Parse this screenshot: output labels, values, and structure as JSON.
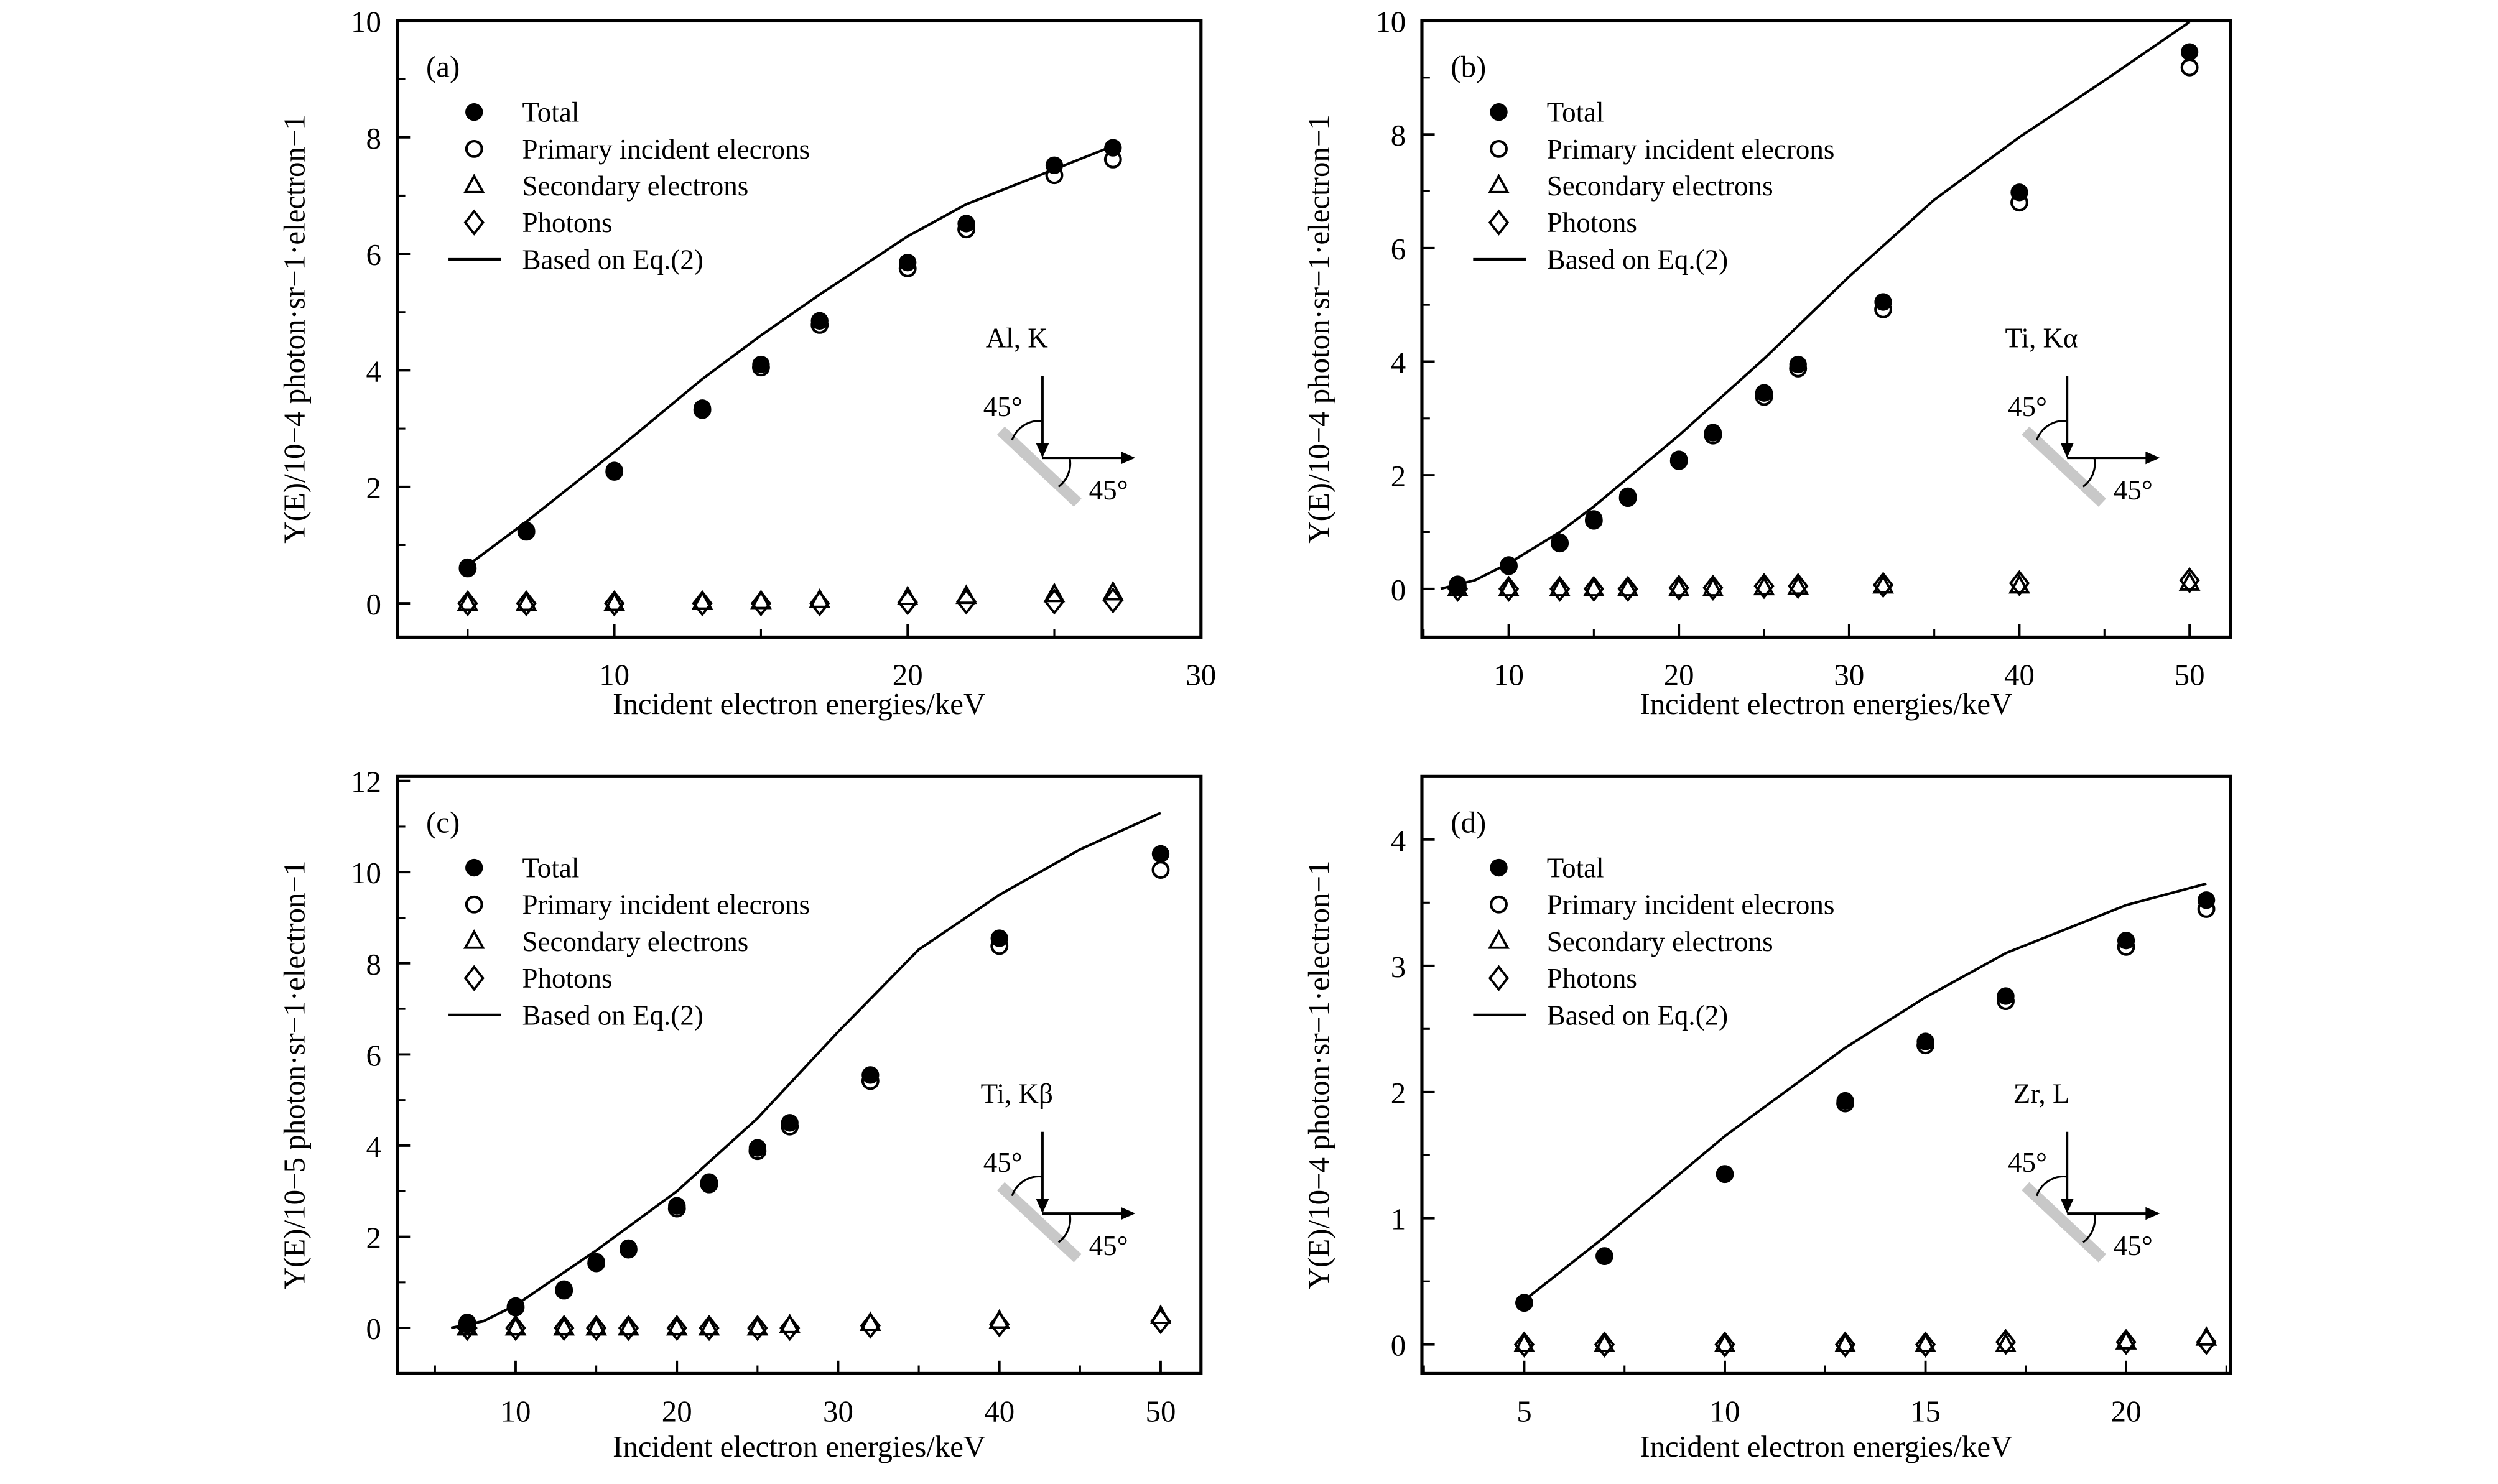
{
  "legend": [
    "Total",
    "Primary incident elecrons",
    "Secondary electrons",
    "Photons",
    "Based on Eq.(2)"
  ],
  "xlabel": "Incident electron energies/keV",
  "angle_label": "45°",
  "chart_data": [
    {
      "type": "scatter",
      "panel": "(a)",
      "annotation": "Al, K",
      "ylabel_exp": "−4",
      "ylabel": "Y(E)/10−4 photon·sr−1·electron−1",
      "xlim": [
        2.6,
        30
      ],
      "ylim": [
        -0.58,
        10
      ],
      "xticks": [
        10,
        20,
        30
      ],
      "xminor": 5,
      "yticks": [
        0,
        2,
        4,
        6,
        8,
        10
      ],
      "yminor": 1,
      "x": [
        5,
        7,
        10,
        13,
        15,
        17,
        20,
        22,
        25,
        27
      ],
      "series": [
        {
          "name": "Total",
          "values": [
            0.62,
            1.25,
            2.28,
            3.35,
            4.1,
            4.85,
            5.85,
            6.52,
            7.52,
            7.82
          ]
        },
        {
          "name": "Primary incident elecrons",
          "values": [
            0.6,
            1.23,
            2.26,
            3.32,
            4.05,
            4.78,
            5.75,
            6.42,
            7.35,
            7.62
          ]
        },
        {
          "name": "Secondary electrons",
          "values": [
            0,
            0,
            0,
            0.02,
            0.03,
            0.05,
            0.1,
            0.12,
            0.15,
            0.18
          ]
        },
        {
          "name": "Photons",
          "values": [
            0,
            0,
            0,
            0,
            0,
            0,
            0.02,
            0.03,
            0.03,
            0.05
          ]
        }
      ],
      "curve": {
        "x": [
          5,
          7,
          10,
          13,
          15,
          17,
          20,
          22,
          25,
          27
        ],
        "y": [
          0.65,
          1.4,
          2.6,
          3.85,
          4.6,
          5.3,
          6.3,
          6.85,
          7.45,
          7.85
        ]
      }
    },
    {
      "type": "scatter",
      "panel": "(b)",
      "annotation": "Ti, Kα",
      "ylabel": "Y(E)/10−4 photon·sr−1·electron−1",
      "xlim": [
        4.9,
        52.4
      ],
      "ylim": [
        -0.85,
        10
      ],
      "xticks": [
        10,
        20,
        30,
        40,
        50
      ],
      "xminor": 5,
      "yticks": [
        0,
        2,
        4,
        6,
        8,
        10
      ],
      "yminor": 1,
      "x": [
        7,
        10,
        13,
        15,
        17,
        20,
        22,
        25,
        27,
        32,
        40,
        50
      ],
      "series": [
        {
          "name": "Total",
          "values": [
            0.08,
            0.42,
            0.82,
            1.23,
            1.63,
            2.28,
            2.75,
            3.45,
            3.95,
            5.05,
            6.98,
            9.45
          ]
        },
        {
          "name": "Primary incident elecrons",
          "values": [
            0.05,
            0.4,
            0.8,
            1.2,
            1.6,
            2.25,
            2.7,
            3.38,
            3.88,
            4.92,
            6.8,
            9.18
          ]
        },
        {
          "name": "Secondary electrons",
          "values": [
            0,
            0,
            0,
            0,
            0,
            0,
            0,
            0.02,
            0.03,
            0.05,
            0.05,
            0.1
          ]
        },
        {
          "name": "Photons",
          "values": [
            0,
            0,
            0,
            0,
            0,
            0.02,
            0.02,
            0.05,
            0.05,
            0.07,
            0.1,
            0.15
          ]
        }
      ],
      "curve": {
        "x": [
          6,
          8,
          10,
          13,
          15,
          20,
          25,
          30,
          35,
          40,
          45,
          50
        ],
        "y": [
          0,
          0.15,
          0.45,
          1.0,
          1.45,
          2.7,
          4.05,
          5.5,
          6.85,
          7.95,
          8.95,
          9.98
        ]
      }
    },
    {
      "type": "scatter",
      "panel": "(c)",
      "annotation": "Ti, Kβ",
      "ylabel": "Y(E)/10−5 photon·sr−1·electron−1",
      "xlim": [
        2.66,
        52.5
      ],
      "ylim": [
        -1,
        12.1
      ],
      "xticks": [
        10,
        20,
        30,
        40,
        50
      ],
      "xminor": 5,
      "yticks": [
        0,
        2,
        4,
        6,
        8,
        10,
        12
      ],
      "yminor": 1,
      "x": [
        7,
        10,
        13,
        15,
        17,
        20,
        22,
        25,
        27,
        32,
        40,
        50
      ],
      "series": [
        {
          "name": "Total",
          "values": [
            0.12,
            0.48,
            0.85,
            1.45,
            1.75,
            2.68,
            3.2,
            3.95,
            4.5,
            5.55,
            8.55,
            10.4
          ]
        },
        {
          "name": "Primary incident elecrons",
          "values": [
            0.08,
            0.45,
            0.82,
            1.42,
            1.72,
            2.62,
            3.15,
            3.88,
            4.42,
            5.42,
            8.38,
            10.05
          ]
        },
        {
          "name": "Secondary electrons",
          "values": [
            0,
            0,
            0,
            0,
            0,
            0,
            0,
            0,
            0.05,
            0.1,
            0.15,
            0.25
          ]
        },
        {
          "name": "Photons",
          "values": [
            0,
            0,
            0,
            0,
            0,
            0,
            0,
            0,
            0,
            0.05,
            0.08,
            0.15
          ]
        }
      ],
      "curve": {
        "x": [
          6,
          8,
          10,
          15,
          20,
          25,
          30,
          35,
          40,
          45,
          50
        ],
        "y": [
          0,
          0.15,
          0.5,
          1.7,
          3.0,
          4.6,
          6.5,
          8.3,
          9.5,
          10.5,
          11.3
        ]
      }
    },
    {
      "type": "scatter",
      "panel": "(d)",
      "annotation": "Zr, L",
      "ylabel": "Y(E)/10−4 photon·sr−1·electron−1",
      "xlim": [
        2.45,
        22.6
      ],
      "ylim": [
        -0.23,
        4.5
      ],
      "xticks": [
        5,
        10,
        15,
        20
      ],
      "xminor": 2.5,
      "yticks": [
        0,
        1,
        2,
        3,
        4
      ],
      "yminor": 0.5,
      "x": [
        5,
        7,
        10,
        13,
        15,
        17,
        20,
        22
      ],
      "series": [
        {
          "name": "Total",
          "values": [
            0.33,
            0.7,
            1.35,
            1.93,
            2.4,
            2.76,
            3.2,
            3.52
          ]
        },
        {
          "name": "Primary incident elecrons",
          "values": [
            0.33,
            0.7,
            1.35,
            1.91,
            2.37,
            2.72,
            3.15,
            3.45
          ]
        },
        {
          "name": "Secondary electrons",
          "values": [
            0,
            0,
            0,
            0,
            0,
            0,
            0.02,
            0.05
          ]
        },
        {
          "name": "Photons",
          "values": [
            0,
            0,
            0,
            0,
            0,
            0.02,
            0.02,
            0.02
          ]
        }
      ],
      "curve": {
        "x": [
          5,
          7,
          10,
          13,
          15,
          17,
          20,
          22
        ],
        "y": [
          0.35,
          0.85,
          1.65,
          2.35,
          2.75,
          3.1,
          3.48,
          3.65
        ]
      }
    }
  ]
}
